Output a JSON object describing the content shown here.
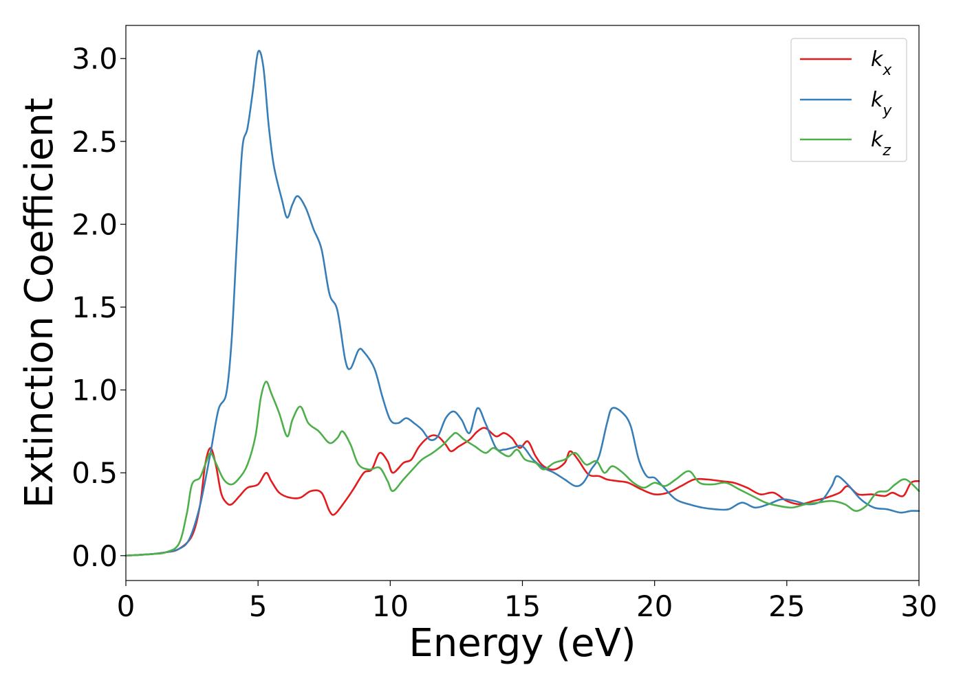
{
  "chart_data": {
    "type": "line",
    "xlabel": "Energy (eV)",
    "ylabel": "Extinction Coefficient",
    "xlim": [
      0,
      30
    ],
    "ylim": [
      -0.15,
      3.2
    ],
    "grid": false,
    "legend_position": "top-right",
    "xticks": [
      0,
      5,
      10,
      15,
      20,
      25,
      30
    ],
    "xtick_labels": [
      "0",
      "5",
      "10",
      "15",
      "20",
      "25",
      "30"
    ],
    "yticks": [
      0.0,
      0.5,
      1.0,
      1.5,
      2.0,
      2.5,
      3.0
    ],
    "ytick_labels": [
      "0.0",
      "0.5",
      "1.0",
      "1.5",
      "2.0",
      "2.5",
      "3.0"
    ],
    "series": [
      {
        "name": "k_x",
        "label_base": "k",
        "label_sub": "x",
        "color": "#e41a1c",
        "points": [
          [
            0,
            0
          ],
          [
            1,
            0.01
          ],
          [
            1.5,
            0.02
          ],
          [
            2,
            0.04
          ],
          [
            2.5,
            0.12
          ],
          [
            2.8,
            0.3
          ],
          [
            3.0,
            0.55
          ],
          [
            3.2,
            0.65
          ],
          [
            3.4,
            0.55
          ],
          [
            3.6,
            0.38
          ],
          [
            3.8,
            0.32
          ],
          [
            4.0,
            0.31
          ],
          [
            4.3,
            0.36
          ],
          [
            4.6,
            0.41
          ],
          [
            5.0,
            0.43
          ],
          [
            5.3,
            0.5
          ],
          [
            5.5,
            0.45
          ],
          [
            5.8,
            0.38
          ],
          [
            6.2,
            0.35
          ],
          [
            6.6,
            0.35
          ],
          [
            7.0,
            0.39
          ],
          [
            7.4,
            0.38
          ],
          [
            7.7,
            0.27
          ],
          [
            7.9,
            0.25
          ],
          [
            8.3,
            0.33
          ],
          [
            8.6,
            0.4
          ],
          [
            9.0,
            0.5
          ],
          [
            9.3,
            0.52
          ],
          [
            9.6,
            0.62
          ],
          [
            9.9,
            0.57
          ],
          [
            10.1,
            0.5
          ],
          [
            10.5,
            0.56
          ],
          [
            10.8,
            0.58
          ],
          [
            11.1,
            0.66
          ],
          [
            11.5,
            0.72
          ],
          [
            11.8,
            0.72
          ],
          [
            12.1,
            0.67
          ],
          [
            12.3,
            0.63
          ],
          [
            12.6,
            0.66
          ],
          [
            13.0,
            0.7
          ],
          [
            13.3,
            0.75
          ],
          [
            13.6,
            0.77
          ],
          [
            14.0,
            0.72
          ],
          [
            14.3,
            0.74
          ],
          [
            14.6,
            0.71
          ],
          [
            14.9,
            0.65
          ],
          [
            15.2,
            0.69
          ],
          [
            15.5,
            0.6
          ],
          [
            15.8,
            0.54
          ],
          [
            16.2,
            0.52
          ],
          [
            16.6,
            0.56
          ],
          [
            16.8,
            0.63
          ],
          [
            17.1,
            0.58
          ],
          [
            17.5,
            0.49
          ],
          [
            17.9,
            0.48
          ],
          [
            18.2,
            0.46
          ],
          [
            18.6,
            0.45
          ],
          [
            19.0,
            0.44
          ],
          [
            19.5,
            0.4
          ],
          [
            20.0,
            0.37
          ],
          [
            20.5,
            0.38
          ],
          [
            21.0,
            0.42
          ],
          [
            21.5,
            0.46
          ],
          [
            22.0,
            0.46
          ],
          [
            22.5,
            0.45
          ],
          [
            23.0,
            0.44
          ],
          [
            23.5,
            0.41
          ],
          [
            24.0,
            0.37
          ],
          [
            24.5,
            0.38
          ],
          [
            25.0,
            0.33
          ],
          [
            25.5,
            0.31
          ],
          [
            26.0,
            0.33
          ],
          [
            26.5,
            0.35
          ],
          [
            27.0,
            0.38
          ],
          [
            27.3,
            0.42
          ],
          [
            27.7,
            0.37
          ],
          [
            28.2,
            0.37
          ],
          [
            28.7,
            0.36
          ],
          [
            29.0,
            0.38
          ],
          [
            29.4,
            0.36
          ],
          [
            29.7,
            0.44
          ],
          [
            30.0,
            0.45
          ]
        ]
      },
      {
        "name": "k_y",
        "label_base": "k",
        "label_sub": "y",
        "color": "#377eb8",
        "points": [
          [
            0,
            0
          ],
          [
            1,
            0.01
          ],
          [
            1.5,
            0.02
          ],
          [
            2,
            0.04
          ],
          [
            2.4,
            0.1
          ],
          [
            2.8,
            0.3
          ],
          [
            3.2,
            0.62
          ],
          [
            3.5,
            0.88
          ],
          [
            3.8,
            0.98
          ],
          [
            4.0,
            1.3
          ],
          [
            4.2,
            1.9
          ],
          [
            4.4,
            2.45
          ],
          [
            4.6,
            2.58
          ],
          [
            4.8,
            2.8
          ],
          [
            5.0,
            3.04
          ],
          [
            5.2,
            2.95
          ],
          [
            5.4,
            2.6
          ],
          [
            5.6,
            2.35
          ],
          [
            5.9,
            2.15
          ],
          [
            6.1,
            2.04
          ],
          [
            6.3,
            2.12
          ],
          [
            6.5,
            2.17
          ],
          [
            6.8,
            2.1
          ],
          [
            7.1,
            1.97
          ],
          [
            7.4,
            1.85
          ],
          [
            7.7,
            1.58
          ],
          [
            8.0,
            1.48
          ],
          [
            8.3,
            1.18
          ],
          [
            8.5,
            1.13
          ],
          [
            8.8,
            1.24
          ],
          [
            9.0,
            1.23
          ],
          [
            9.4,
            1.13
          ],
          [
            9.7,
            0.96
          ],
          [
            10.0,
            0.82
          ],
          [
            10.3,
            0.8
          ],
          [
            10.6,
            0.83
          ],
          [
            10.9,
            0.8
          ],
          [
            11.2,
            0.76
          ],
          [
            11.5,
            0.7
          ],
          [
            11.8,
            0.72
          ],
          [
            12.1,
            0.83
          ],
          [
            12.4,
            0.87
          ],
          [
            12.7,
            0.82
          ],
          [
            13.0,
            0.74
          ],
          [
            13.3,
            0.89
          ],
          [
            13.6,
            0.8
          ],
          [
            14.0,
            0.65
          ],
          [
            14.3,
            0.64
          ],
          [
            14.6,
            0.65
          ],
          [
            15.0,
            0.66
          ],
          [
            15.4,
            0.58
          ],
          [
            15.8,
            0.53
          ],
          [
            16.2,
            0.5
          ],
          [
            16.6,
            0.46
          ],
          [
            17.0,
            0.42
          ],
          [
            17.3,
            0.44
          ],
          [
            17.6,
            0.52
          ],
          [
            17.9,
            0.6
          ],
          [
            18.2,
            0.8
          ],
          [
            18.4,
            0.89
          ],
          [
            18.8,
            0.86
          ],
          [
            19.1,
            0.78
          ],
          [
            19.4,
            0.58
          ],
          [
            19.7,
            0.48
          ],
          [
            20.0,
            0.47
          ],
          [
            20.3,
            0.42
          ],
          [
            20.8,
            0.34
          ],
          [
            21.3,
            0.31
          ],
          [
            21.8,
            0.29
          ],
          [
            22.3,
            0.28
          ],
          [
            22.8,
            0.28
          ],
          [
            23.3,
            0.32
          ],
          [
            23.8,
            0.29
          ],
          [
            24.3,
            0.31
          ],
          [
            24.8,
            0.34
          ],
          [
            25.3,
            0.33
          ],
          [
            25.8,
            0.31
          ],
          [
            26.3,
            0.33
          ],
          [
            26.7,
            0.42
          ],
          [
            26.9,
            0.48
          ],
          [
            27.3,
            0.43
          ],
          [
            27.8,
            0.34
          ],
          [
            28.3,
            0.29
          ],
          [
            28.8,
            0.28
          ],
          [
            29.3,
            0.26
          ],
          [
            29.7,
            0.27
          ],
          [
            30.0,
            0.27
          ]
        ]
      },
      {
        "name": "k_z",
        "label_base": "k",
        "label_sub": "z",
        "color": "#4daf4a",
        "points": [
          [
            0,
            0
          ],
          [
            1,
            0.01
          ],
          [
            1.5,
            0.02
          ],
          [
            2,
            0.07
          ],
          [
            2.3,
            0.25
          ],
          [
            2.5,
            0.43
          ],
          [
            2.8,
            0.47
          ],
          [
            3.0,
            0.55
          ],
          [
            3.2,
            0.62
          ],
          [
            3.4,
            0.56
          ],
          [
            3.7,
            0.46
          ],
          [
            4.0,
            0.43
          ],
          [
            4.3,
            0.47
          ],
          [
            4.6,
            0.55
          ],
          [
            4.9,
            0.72
          ],
          [
            5.1,
            0.95
          ],
          [
            5.3,
            1.05
          ],
          [
            5.5,
            0.98
          ],
          [
            5.8,
            0.86
          ],
          [
            6.1,
            0.72
          ],
          [
            6.3,
            0.82
          ],
          [
            6.6,
            0.9
          ],
          [
            6.9,
            0.8
          ],
          [
            7.3,
            0.75
          ],
          [
            7.7,
            0.68
          ],
          [
            8.0,
            0.71
          ],
          [
            8.2,
            0.75
          ],
          [
            8.5,
            0.67
          ],
          [
            8.8,
            0.55
          ],
          [
            9.2,
            0.52
          ],
          [
            9.6,
            0.53
          ],
          [
            9.9,
            0.45
          ],
          [
            10.1,
            0.39
          ],
          [
            10.5,
            0.46
          ],
          [
            10.9,
            0.53
          ],
          [
            11.2,
            0.58
          ],
          [
            11.6,
            0.62
          ],
          [
            12.0,
            0.67
          ],
          [
            12.3,
            0.72
          ],
          [
            12.5,
            0.74
          ],
          [
            12.8,
            0.7
          ],
          [
            13.2,
            0.66
          ],
          [
            13.6,
            0.62
          ],
          [
            13.9,
            0.65
          ],
          [
            14.2,
            0.62
          ],
          [
            14.5,
            0.6
          ],
          [
            14.8,
            0.64
          ],
          [
            15.1,
            0.58
          ],
          [
            15.5,
            0.56
          ],
          [
            15.8,
            0.52
          ],
          [
            16.2,
            0.56
          ],
          [
            16.6,
            0.58
          ],
          [
            17.0,
            0.62
          ],
          [
            17.4,
            0.55
          ],
          [
            17.8,
            0.57
          ],
          [
            18.1,
            0.5
          ],
          [
            18.4,
            0.54
          ],
          [
            18.8,
            0.5
          ],
          [
            19.2,
            0.44
          ],
          [
            19.6,
            0.41
          ],
          [
            20.0,
            0.44
          ],
          [
            20.4,
            0.42
          ],
          [
            20.8,
            0.46
          ],
          [
            21.3,
            0.51
          ],
          [
            21.7,
            0.44
          ],
          [
            22.2,
            0.43
          ],
          [
            22.7,
            0.44
          ],
          [
            23.2,
            0.4
          ],
          [
            23.7,
            0.36
          ],
          [
            24.2,
            0.32
          ],
          [
            24.7,
            0.3
          ],
          [
            25.2,
            0.29
          ],
          [
            25.7,
            0.31
          ],
          [
            26.2,
            0.32
          ],
          [
            26.7,
            0.33
          ],
          [
            27.2,
            0.31
          ],
          [
            27.6,
            0.27
          ],
          [
            28.0,
            0.3
          ],
          [
            28.4,
            0.38
          ],
          [
            28.8,
            0.39
          ],
          [
            29.1,
            0.43
          ],
          [
            29.5,
            0.46
          ],
          [
            30.0,
            0.39
          ]
        ]
      }
    ]
  }
}
